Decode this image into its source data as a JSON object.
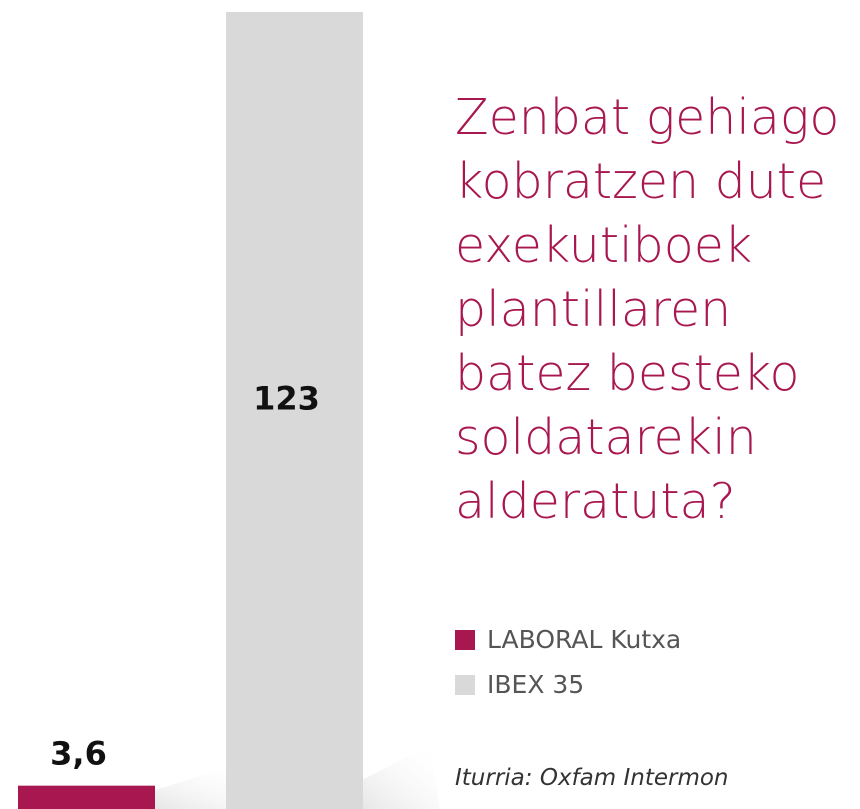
{
  "chart_data": {
    "type": "bar",
    "title": "Zenbat gehiago kobratzen dute exekutiboek plantillaren batez besteko soldatarekin alderatuta?",
    "series": [
      {
        "name": "LABORAL Kutxa",
        "color": "#a8174f",
        "values": [
          3.6
        ],
        "value_labels": [
          "3,6"
        ]
      },
      {
        "name": "IBEX 35",
        "color": "#d9d9d9",
        "values": [
          123
        ]
      }
    ],
    "source": "Iturria: Oxfam Intermon"
  }
}
